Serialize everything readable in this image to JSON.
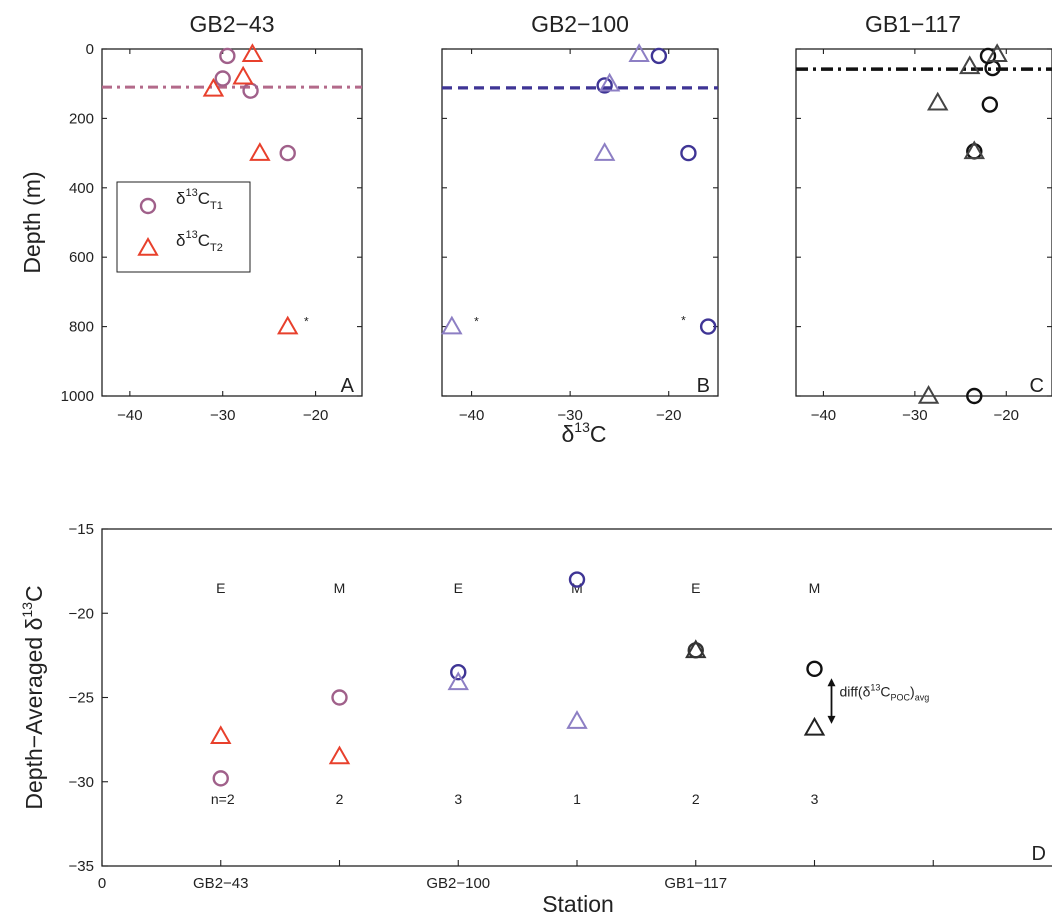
{
  "chart_data": [
    {
      "type": "scatter",
      "panel": "A",
      "title": "GB2−43",
      "ylabel": "Depth (m)",
      "xlim": [
        -43,
        -15
      ],
      "ylim": [
        1000,
        0
      ],
      "xticks": [
        -40,
        -30,
        -20
      ],
      "xtick_labels": [
        "−40",
        "−30",
        "−20"
      ],
      "yticks": [
        0,
        200,
        400,
        600,
        800,
        1000
      ],
      "ytick_labels": [
        "0",
        "200",
        "400",
        "600",
        "800",
        "1000"
      ],
      "reference_line_depth": 110,
      "colors": {
        "T1": "#a0608a",
        "T2": "#e8402c",
        "line": "#b36a8a"
      },
      "legend": {
        "position": "left",
        "entries": [
          {
            "symbol": "circle",
            "color": "#a0608a",
            "main": "δ",
            "sup": "13",
            "base": "C",
            "sub": "T1"
          },
          {
            "symbol": "triangle",
            "color": "#e8402c",
            "main": "δ",
            "sup": "13",
            "base": "C",
            "sub": "T2"
          }
        ]
      },
      "series": [
        {
          "id": "T1",
          "marker": "circle",
          "x": [
            -29.5,
            -30,
            -27,
            -23
          ],
          "y": [
            20,
            85,
            120,
            300
          ]
        },
        {
          "id": "T2",
          "marker": "triangle",
          "x": [
            -26.8,
            -27.8,
            -31,
            -26,
            -23
          ],
          "y": [
            15,
            80,
            115,
            300,
            800
          ]
        },
        {
          "id": "star",
          "marker": "star",
          "x": [
            -21
          ],
          "y": [
            785
          ]
        }
      ]
    },
    {
      "type": "scatter",
      "panel": "B",
      "title": "GB2−100",
      "xlabel_main": "δ",
      "xlabel_sup": "13",
      "xlabel_rest": "C",
      "xlim": [
        -43,
        -15
      ],
      "ylim": [
        1000,
        0
      ],
      "xticks": [
        -40,
        -30,
        -20
      ],
      "xtick_labels": [
        "−40",
        "−30",
        "−20"
      ],
      "reference_line_depth": 112,
      "colors": {
        "T1": "#3f3595",
        "T2": "#8d7fc4",
        "line": "#3f3595"
      },
      "series": [
        {
          "id": "T1",
          "marker": "circle",
          "x": [
            -21,
            -26.5,
            -18,
            -16
          ],
          "y": [
            20,
            105,
            300,
            800
          ]
        },
        {
          "id": "T2",
          "marker": "triangle",
          "x": [
            -23,
            -26,
            -26.5,
            -42
          ],
          "y": [
            15,
            100,
            300,
            800
          ]
        },
        {
          "id": "star",
          "marker": "star",
          "x": [
            -39.5,
            -18.5
          ],
          "y": [
            785,
            783
          ]
        }
      ]
    },
    {
      "type": "scatter",
      "panel": "C",
      "title": "GB1−117",
      "xlim": [
        -43,
        -15
      ],
      "ylim": [
        1000,
        0
      ],
      "xticks": [
        -40,
        -30,
        -20
      ],
      "xtick_labels": [
        "−40",
        "−30",
        "−20"
      ],
      "reference_line_depth": 58,
      "colors": {
        "T1": "#111111",
        "T2": "#444444",
        "line": "#111111"
      },
      "series": [
        {
          "id": "T1",
          "marker": "circle",
          "x": [
            -22,
            -21.5,
            -21.8,
            -23.5,
            -23.5
          ],
          "y": [
            20,
            55,
            160,
            295,
            1000
          ]
        },
        {
          "id": "T2",
          "marker": "triangle",
          "x": [
            -21,
            -24,
            -27.5,
            -23.5,
            -28.5
          ],
          "y": [
            15,
            50,
            155,
            295,
            1000
          ]
        }
      ]
    },
    {
      "type": "scatter",
      "panel": "D",
      "xlabel": "Station",
      "ylabel_main": "Depth−Averaged δ",
      "ylabel_sup": "13",
      "ylabel_rest": "C",
      "xlim": [
        0,
        8
      ],
      "ylim": [
        -35,
        -15
      ],
      "xticks": [
        0,
        1,
        3,
        5
      ],
      "xtick_labels": [
        "0",
        "GB2−43",
        "GB2−100",
        "GB1−117"
      ],
      "yticks": [
        -15,
        -20,
        -25,
        -30,
        -35
      ],
      "ytick_labels": [
        "−15",
        "−20",
        "−25",
        "−30",
        "−35"
      ],
      "categories": {
        "x": [
          1,
          2,
          3,
          4,
          5,
          6
        ],
        "top": [
          "E",
          "M",
          "E",
          "M",
          "E",
          "M"
        ],
        "bottom": [
          "n=2",
          "2",
          "3",
          "1",
          "2",
          "3"
        ]
      },
      "annotation": {
        "main": "diff(δ",
        "sup": "13",
        "base": "C",
        "sub": "POC",
        "tail": ")",
        "sub2": "avg"
      },
      "series": [
        {
          "id": "circles",
          "marker": "circle",
          "x": [
            1,
            2,
            3,
            4,
            5,
            6
          ],
          "y": [
            -29.8,
            -25,
            -23.5,
            -18,
            -22.2,
            -23.3
          ],
          "colors": [
            "#a0608a",
            "#a0608a",
            "#3f3595",
            "#3f3595",
            "#333333",
            "#111111"
          ]
        },
        {
          "id": "triangles",
          "marker": "triangle",
          "x": [
            1,
            2,
            3,
            4,
            5,
            6
          ],
          "y": [
            -27.3,
            -28.5,
            -24.1,
            -26.4,
            -22.2,
            -26.8
          ],
          "colors": [
            "#e8402c",
            "#e8402c",
            "#8d7fc4",
            "#8d7fc4",
            "#333333",
            "#222222"
          ]
        }
      ]
    }
  ]
}
